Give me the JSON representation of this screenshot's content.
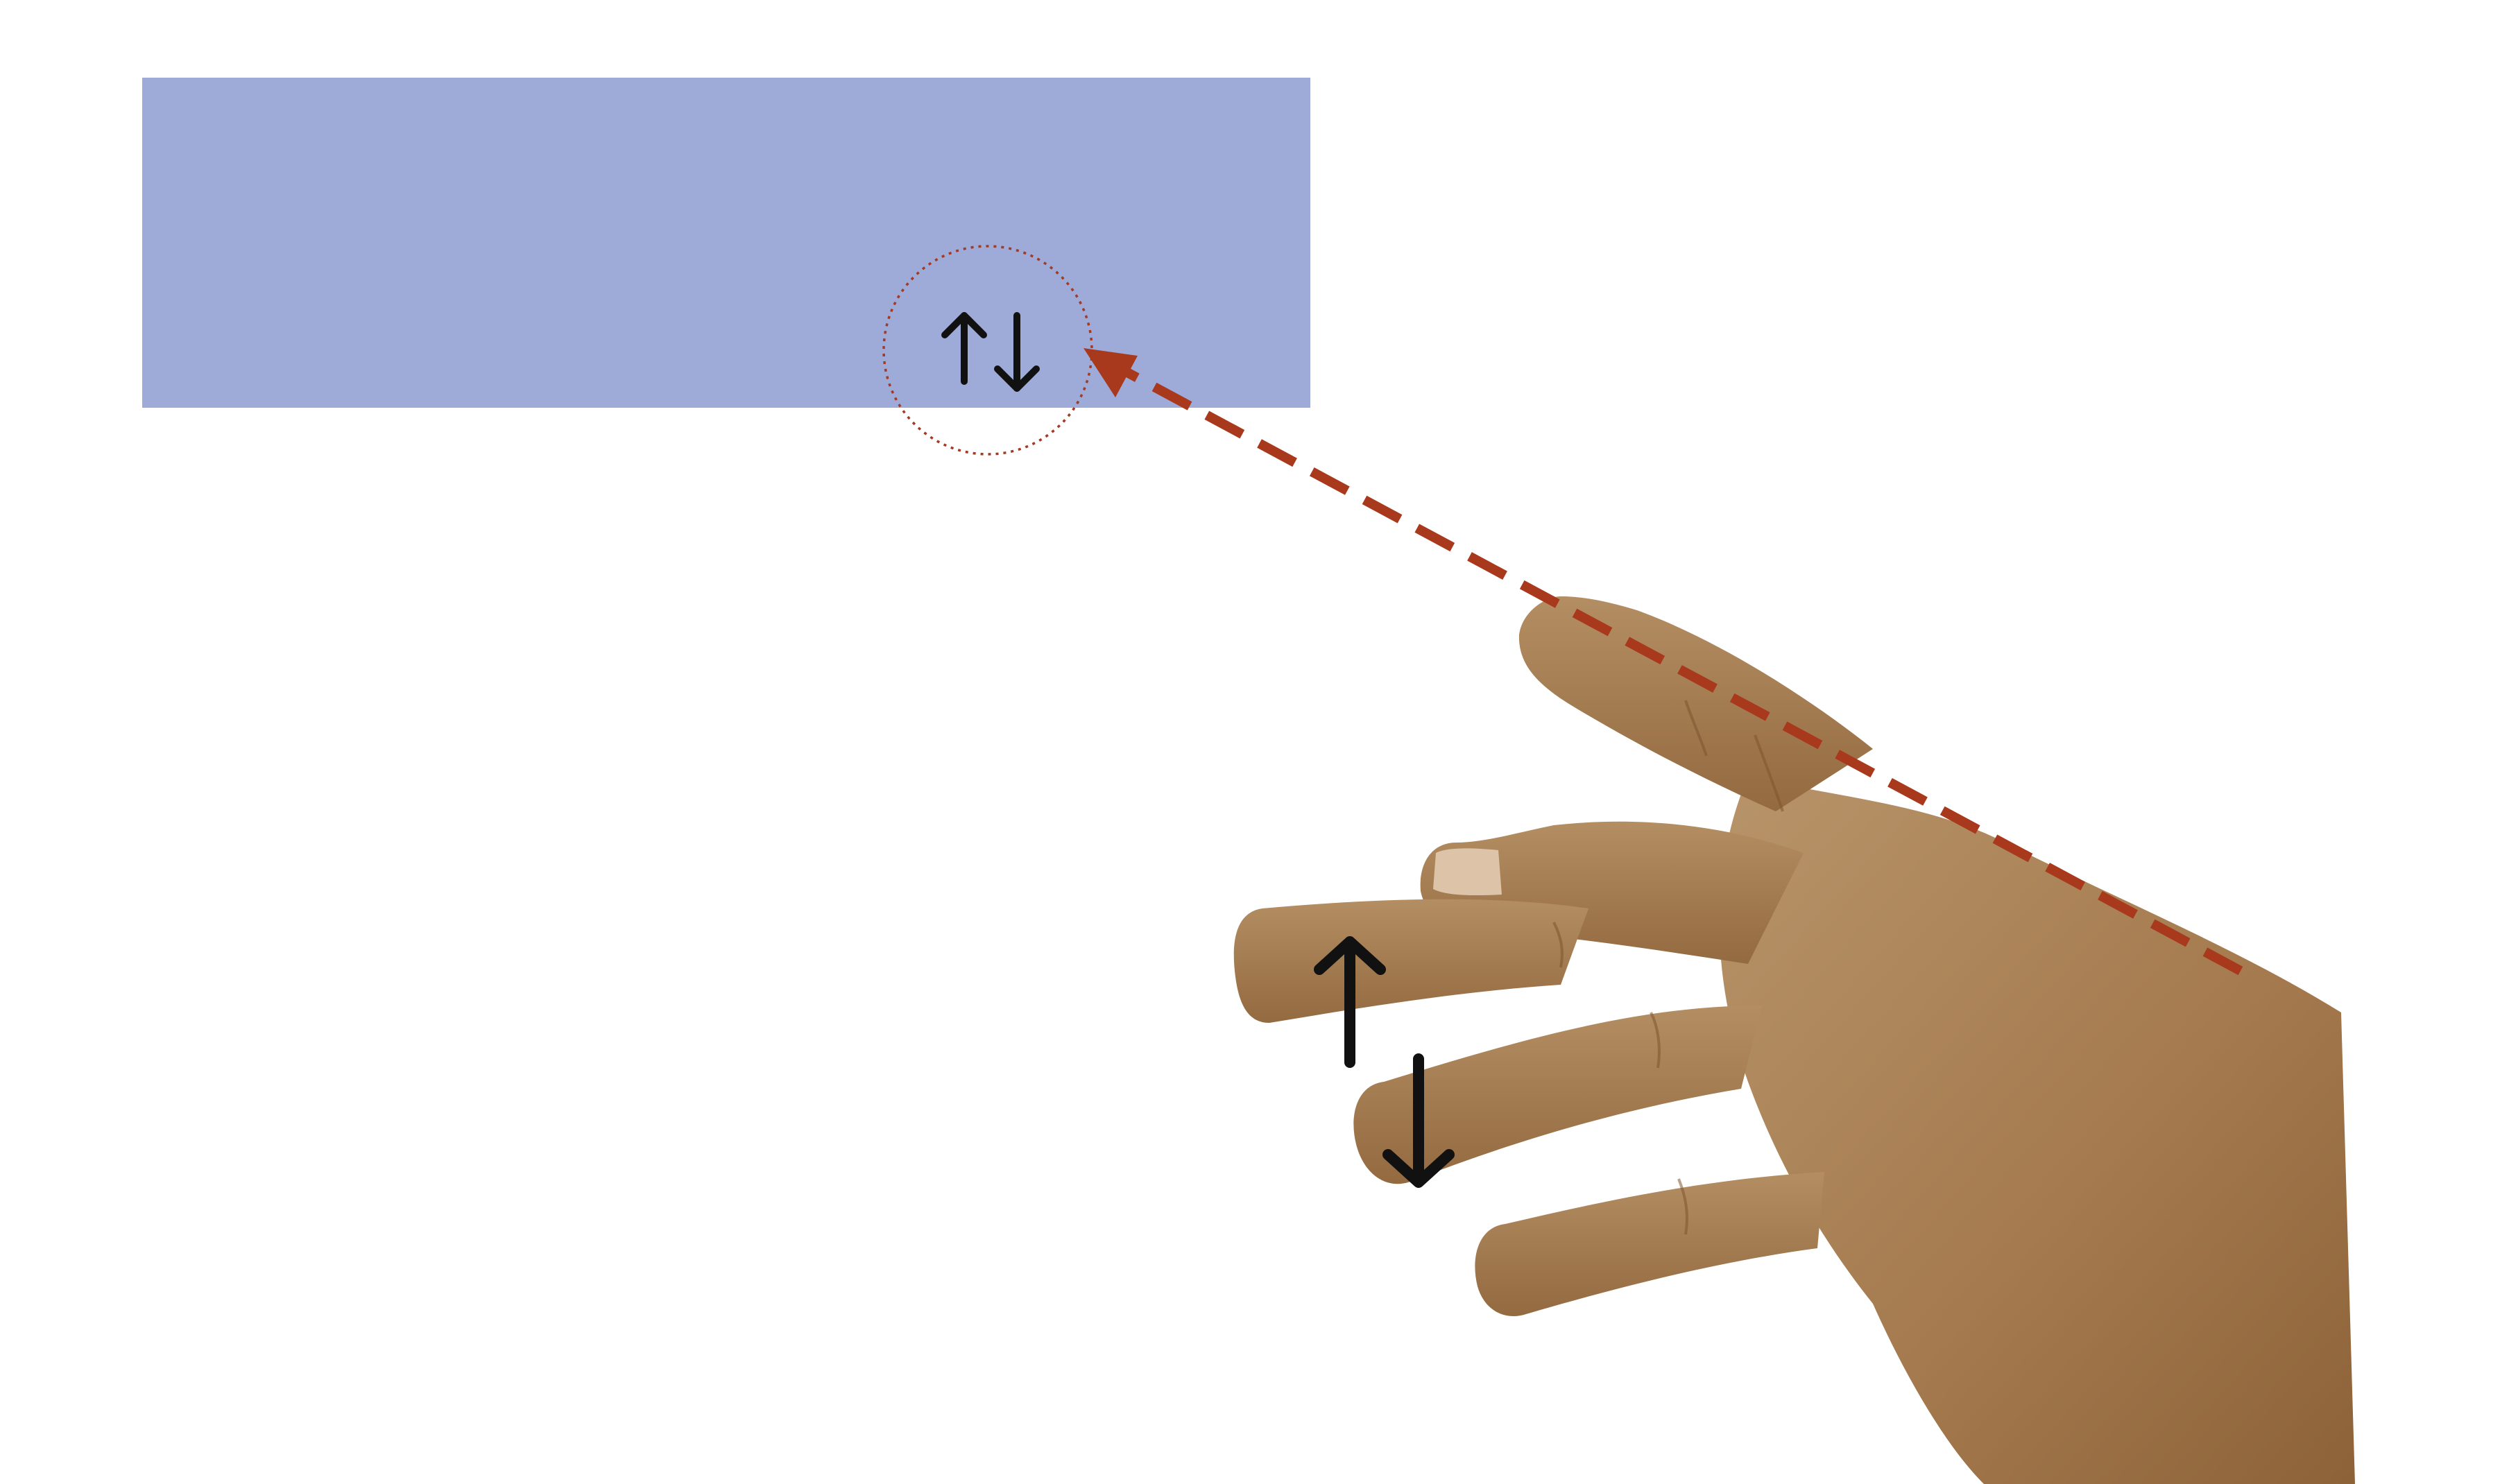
{
  "diagram": {
    "target_panel": {
      "fill_color": "#9eabd9"
    },
    "cursor_indicator": {
      "icon": "up-down-arrows-icon",
      "circle_color": "#a33a23",
      "arrow_color": "#111111"
    },
    "pointing_line": {
      "style": "dashed",
      "color": "#a9391c"
    },
    "hand": {
      "icon": "pointing-hand-icon",
      "skin_color": "#a87c52",
      "gesture_arrows_icon": "up-down-arrows-icon",
      "gesture_arrow_color": "#111111"
    }
  }
}
